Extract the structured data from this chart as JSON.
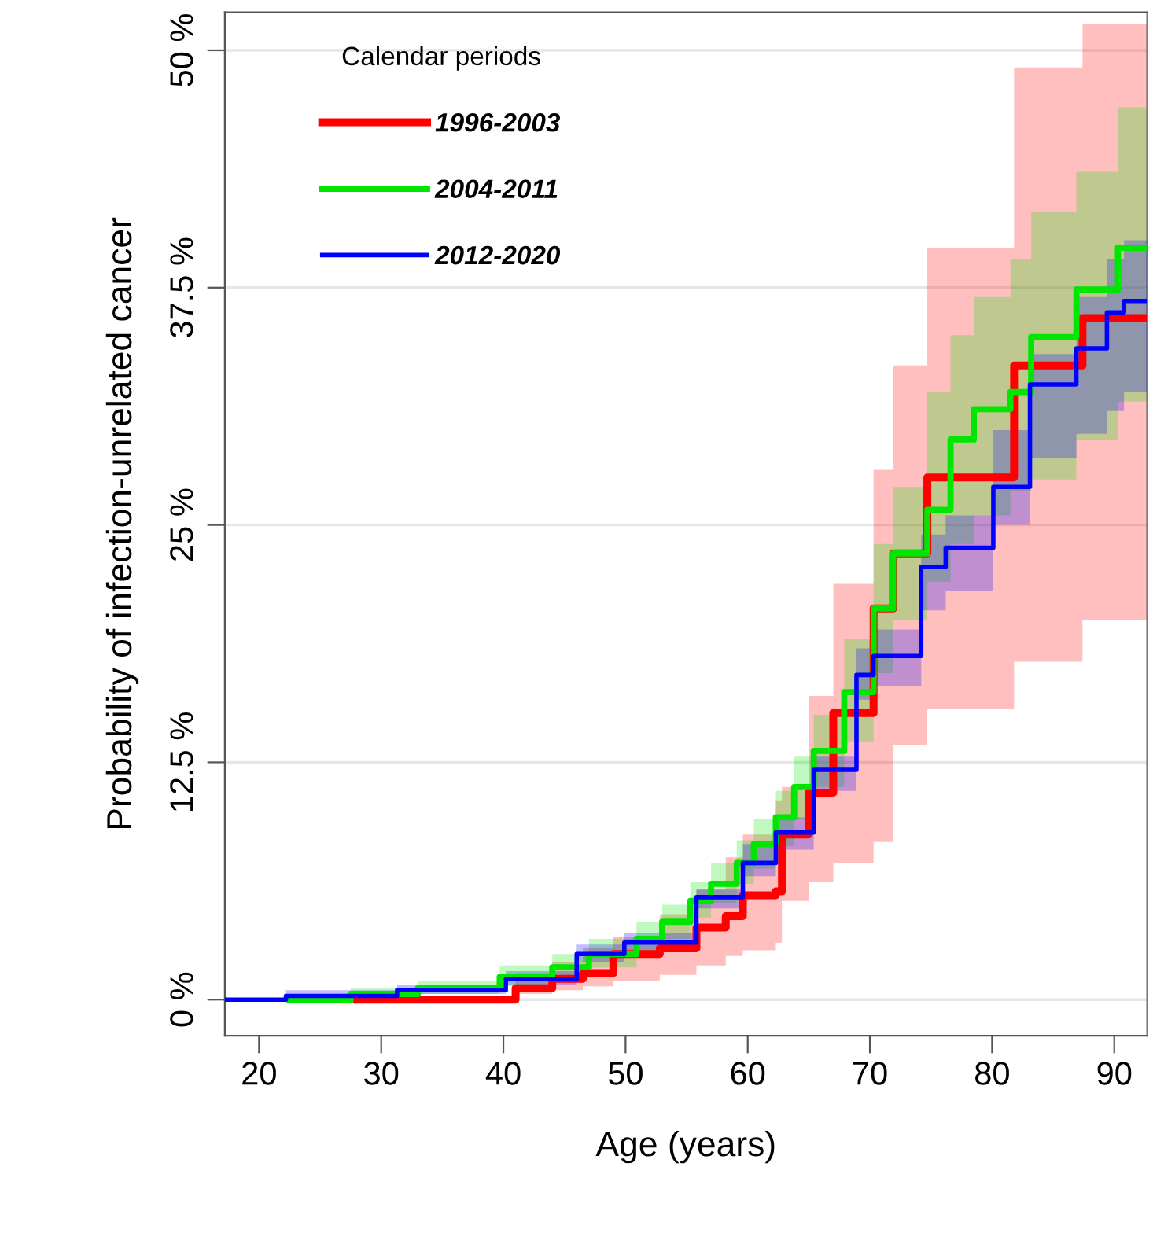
{
  "chart_data": {
    "type": "step",
    "xlabel": "Age (years)",
    "ylabel": "Probability of infection-unrelated cancer",
    "legend_title": "Calendar periods",
    "legend": "top left",
    "grid": "y",
    "xlim": [
      17.2,
      92.7
    ],
    "xticks": [
      20,
      30,
      40,
      50,
      60,
      70,
      80,
      90
    ],
    "ylim": [
      -1.9,
      52
    ],
    "yticks": [
      {
        "value": 0,
        "label": "0 %"
      },
      {
        "value": 12.5,
        "label": "12.5 %"
      },
      {
        "value": 25,
        "label": "25 %"
      },
      {
        "value": 37.5,
        "label": "37.5 %"
      },
      {
        "value": 50,
        "label": "50 %"
      }
    ],
    "series": [
      {
        "name": "1996-2003",
        "color": "#ff0000",
        "x": [
          28,
          41,
          44,
          46.5,
          49,
          52.8,
          55.8,
          58.2,
          59.6,
          62.3,
          62.8,
          65,
          67,
          70.3,
          71.9,
          74.7,
          81.8,
          87.4,
          92.7
        ],
        "values": [
          0,
          0.6,
          1.1,
          1.4,
          2.4,
          2.7,
          3.8,
          4.4,
          5.5,
          5.7,
          8.7,
          10.9,
          15.1,
          20.6,
          23.5,
          27.5,
          33.4,
          35.9,
          35.9
        ],
        "upper": [
          0.2,
          1.4,
          2.0,
          2.7,
          3.3,
          4.5,
          5.8,
          7.5,
          8.7,
          10.5,
          11.2,
          16,
          21.9,
          27.9,
          33.4,
          39.6,
          49.1,
          51.4,
          51.4
        ],
        "lower": [
          0,
          0.3,
          0.5,
          0.7,
          1.0,
          1.3,
          1.8,
          2.3,
          2.6,
          3.0,
          5.2,
          6.2,
          7.2,
          8.3,
          13.4,
          15.3,
          17.8,
          20.0,
          20.0
        ]
      },
      {
        "name": "2004-2011",
        "color": "#00e600",
        "x": [
          22.5,
          27.5,
          33,
          39.7,
          44,
          47,
          50.9,
          53,
          55.3,
          57,
          59.1,
          60.5,
          62.3,
          63.8,
          65.4,
          67.9,
          70.3,
          71.9,
          74.7,
          76.6,
          78.5,
          81.5,
          83.2,
          86.9,
          90.3,
          92.7
        ],
        "values": [
          0,
          0.3,
          0.6,
          1.2,
          1.7,
          2.4,
          3.2,
          4.1,
          5.2,
          6.1,
          7.2,
          8.2,
          9.6,
          11.2,
          13.1,
          16.2,
          20.6,
          23.5,
          25.8,
          29.5,
          31.1,
          32.0,
          34.9,
          37.4,
          39.6,
          39.6
        ],
        "upper": [
          0.3,
          0.6,
          1.0,
          1.8,
          2.4,
          3.2,
          4.1,
          5.0,
          6.2,
          7.2,
          8.4,
          9.5,
          11.0,
          12.8,
          15.0,
          19.0,
          24.0,
          27.0,
          32.0,
          35.0,
          37.0,
          39.0,
          41.5,
          43.6,
          47.0,
          47.0
        ],
        "lower": [
          0,
          0.1,
          0.3,
          0.7,
          1.1,
          1.7,
          2.4,
          3.2,
          4.3,
          5.1,
          6.1,
          6.9,
          8.1,
          9.5,
          11.2,
          13.6,
          17.2,
          20.0,
          22.0,
          24.0,
          25.5,
          26.8,
          27.4,
          29.5,
          31.5,
          31.5
        ]
      },
      {
        "name": "2012-2020",
        "color": "#0000ff",
        "x": [
          17.2,
          22.2,
          31.3,
          40.2,
          46,
          49.9,
          55.8,
          59.6,
          62.3,
          65.4,
          68.9,
          70.3,
          74.2,
          76.2,
          80.1,
          83.1,
          86.9,
          89.4,
          90.8,
          92.7
        ],
        "values": [
          0,
          0.2,
          0.5,
          1.1,
          2.4,
          3.0,
          5.4,
          7.2,
          8.8,
          12.1,
          17.1,
          18.1,
          22.8,
          23.8,
          27.0,
          32.4,
          34.3,
          36.2,
          36.8,
          36.8
        ],
        "upper": [
          0,
          0.5,
          0.8,
          1.5,
          2.9,
          3.5,
          5.8,
          8.2,
          9.6,
          12.8,
          18.5,
          19.5,
          24.5,
          25.5,
          30.0,
          34.0,
          37.0,
          39.0,
          40.0,
          41.0
        ],
        "lower": [
          0,
          0,
          0.3,
          0.8,
          2.0,
          2.6,
          4.8,
          6.5,
          7.9,
          11.0,
          15.8,
          16.5,
          20.5,
          21.5,
          25.0,
          28.5,
          29.8,
          31.0,
          32.0,
          32.5
        ]
      }
    ]
  }
}
